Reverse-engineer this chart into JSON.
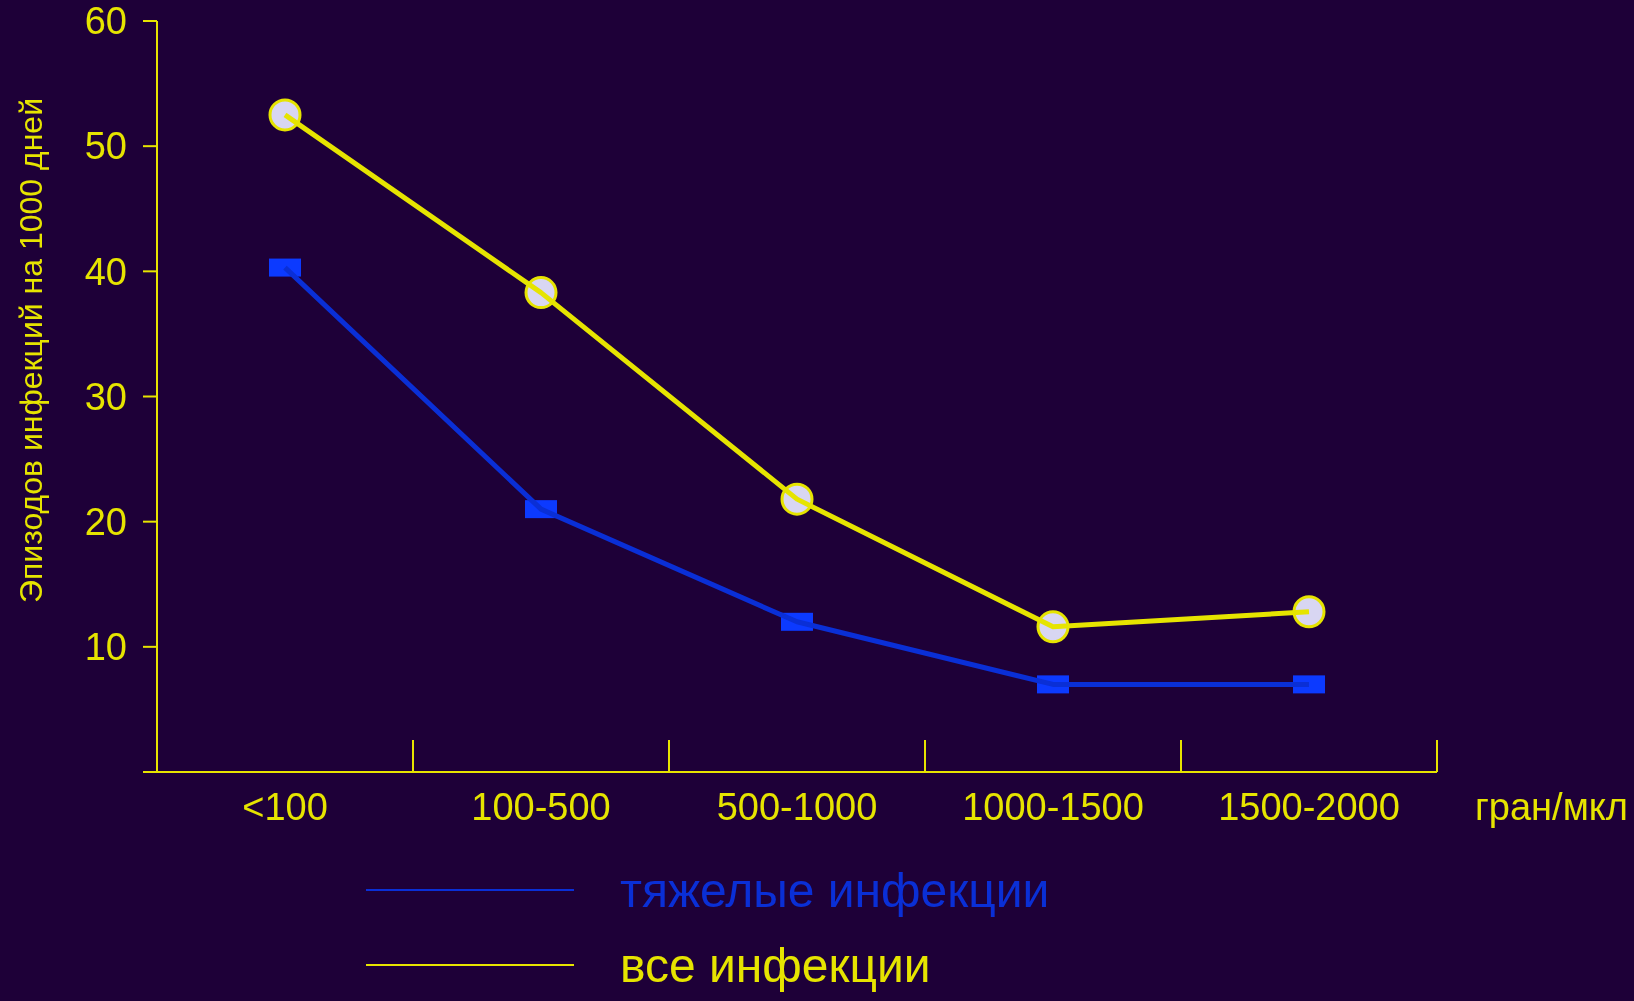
{
  "chart_data": {
    "type": "line",
    "ylabel": "Эпизодов инфекций на 1000 дней",
    "xlabel": "гран/мкл",
    "categories": [
      "<100",
      "100-500",
      "500-1000",
      "1000-1500",
      "1500-2000"
    ],
    "series": [
      {
        "name": "тяжелые инфекции",
        "color": "#0a2fd6",
        "marker": "square",
        "values": [
          40.3,
          21,
          12,
          7,
          7
        ]
      },
      {
        "name": "все инфекции",
        "color": "#e6e400",
        "marker": "circle",
        "values": [
          52.5,
          38.3,
          21.8,
          11.6,
          12.8
        ]
      }
    ],
    "ylim": [
      0,
      60
    ],
    "yticks": [
      {
        "value": 0,
        "label": null
      },
      10,
      20,
      30,
      40,
      50,
      60
    ],
    "grid": false,
    "legend": "bottom",
    "line_style": "solid"
  }
}
